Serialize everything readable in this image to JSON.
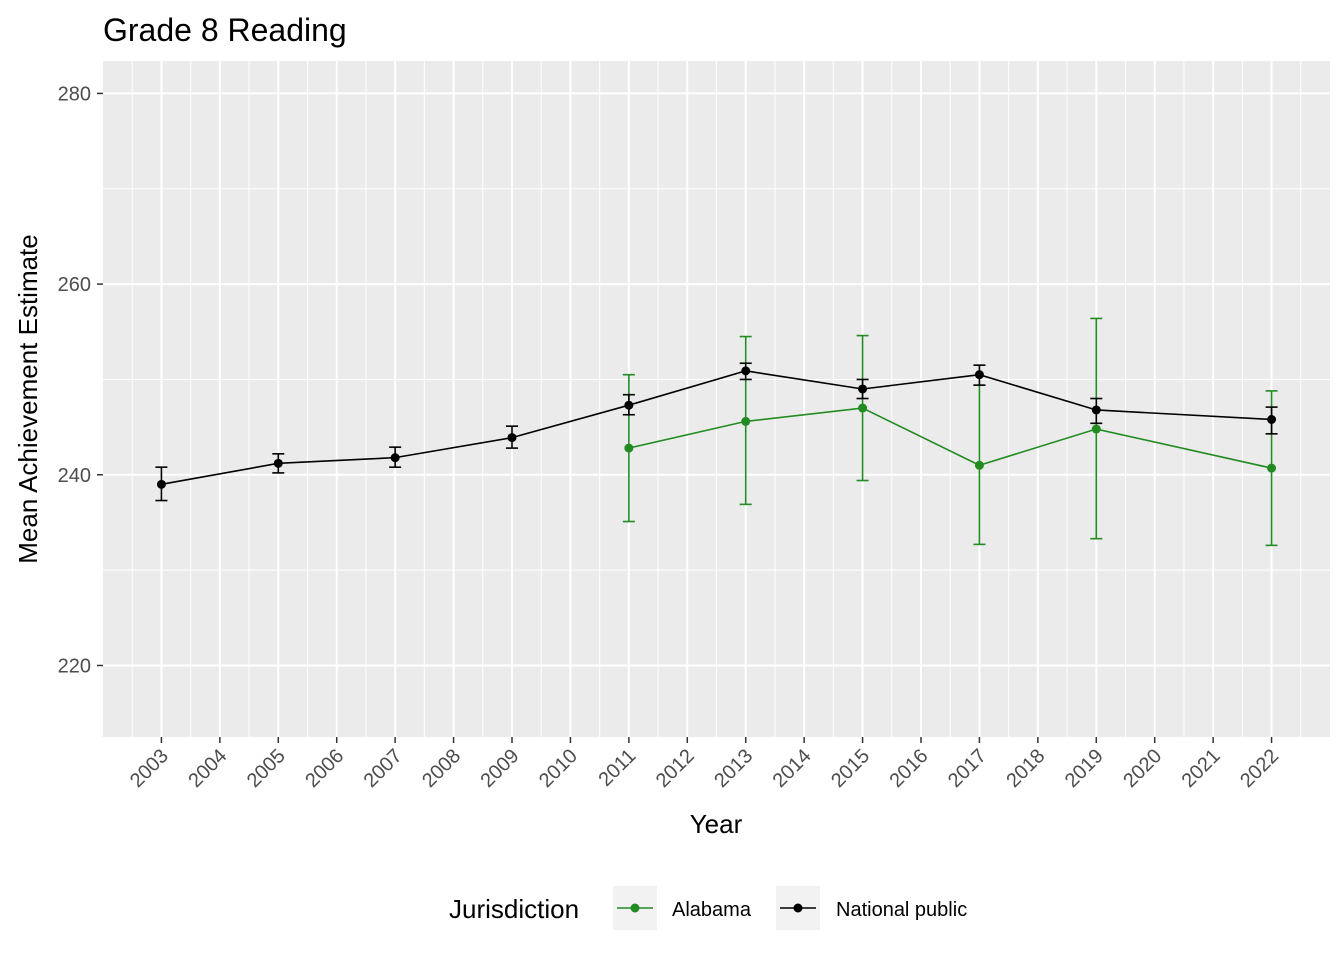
{
  "chart_data": {
    "type": "line",
    "title": "Grade 8 Reading",
    "xlabel": "Year",
    "ylabel": "Mean Achievement Estimate",
    "x_ticks": [
      "2003",
      "2004",
      "2005",
      "2006",
      "2007",
      "2008",
      "2009",
      "2010",
      "2011",
      "2012",
      "2013",
      "2014",
      "2015",
      "2016",
      "2017",
      "2018",
      "2019",
      "2020",
      "2021",
      "2022"
    ],
    "y_ticks": [
      220,
      240,
      260,
      280
    ],
    "ylim": [
      212.5,
      283.4
    ],
    "xlim": [
      2002.0,
      2023.0
    ],
    "grid": true,
    "legend": {
      "title": "Jurisdiction",
      "position": "bottom"
    },
    "series": [
      {
        "name": "Alabama",
        "color": "#228B22",
        "points": [
          {
            "x": 2011,
            "y": 242.8,
            "low": 235.1,
            "high": 250.5
          },
          {
            "x": 2013,
            "y": 245.6,
            "low": 236.9,
            "high": 254.5
          },
          {
            "x": 2015,
            "y": 247.0,
            "low": 239.4,
            "high": 254.6
          },
          {
            "x": 2017,
            "y": 241.0,
            "low": 232.7,
            "high": 249.4
          },
          {
            "x": 2019,
            "y": 244.8,
            "low": 233.3,
            "high": 256.4
          },
          {
            "x": 2022,
            "y": 240.7,
            "low": 232.6,
            "high": 248.8
          }
        ]
      },
      {
        "name": "National public",
        "color": "#000000",
        "points": [
          {
            "x": 2003,
            "y": 239.0,
            "low": 237.3,
            "high": 240.8
          },
          {
            "x": 2005,
            "y": 241.2,
            "low": 240.2,
            "high": 242.2
          },
          {
            "x": 2007,
            "y": 241.8,
            "low": 240.8,
            "high": 242.9
          },
          {
            "x": 2009,
            "y": 243.9,
            "low": 242.8,
            "high": 245.1
          },
          {
            "x": 2011,
            "y": 247.3,
            "low": 246.3,
            "high": 248.4
          },
          {
            "x": 2013,
            "y": 250.9,
            "low": 250.0,
            "high": 251.7
          },
          {
            "x": 2015,
            "y": 249.0,
            "low": 248.0,
            "high": 250.0
          },
          {
            "x": 2017,
            "y": 250.5,
            "low": 249.4,
            "high": 251.5
          },
          {
            "x": 2019,
            "y": 246.8,
            "low": 245.4,
            "high": 248.0
          },
          {
            "x": 2022,
            "y": 245.8,
            "low": 244.3,
            "high": 247.1
          }
        ]
      }
    ]
  }
}
